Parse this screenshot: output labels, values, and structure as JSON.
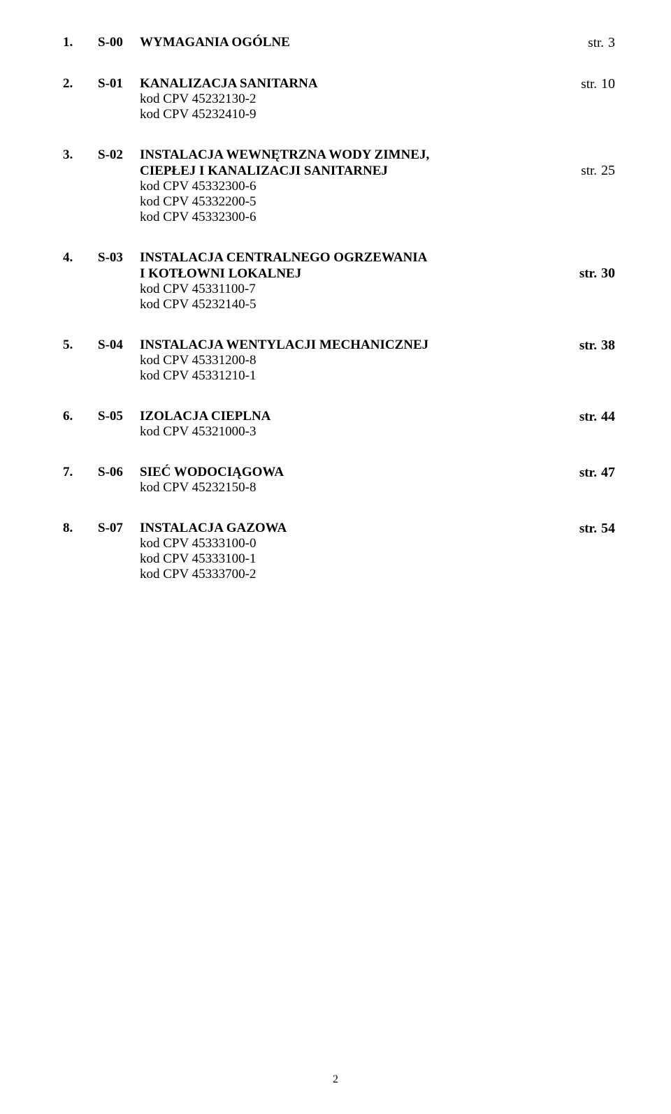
{
  "items": [
    {
      "number": "1.",
      "code": "S-00",
      "title": "WYMAGANIA OGÓLNE",
      "subtitle": "",
      "subLines": [],
      "strLabel": "str.",
      "pageNum": "3",
      "pageBold": false,
      "subtitleAligned": false
    },
    {
      "number": "2.",
      "code": "S-01",
      "title": "KANALIZACJA SANITARNA",
      "subtitle": "",
      "subLines": [
        "kod CPV  45232130-2",
        "kod CPV  45232410-9"
      ],
      "strLabel": "str.",
      "pageNum": "10",
      "pageBold": false,
      "subtitleAligned": false
    },
    {
      "number": "3.",
      "code": "S-02",
      "title": "INSTALACJA WEWNĘTRZNA WODY ZIMNEJ,",
      "subtitle": "CIEPŁEJ I KANALIZACJI SANITARNEJ",
      "subLines": [
        "kod CPV  45332300-6",
        "kod CPV  45332200-5",
        "kod CPV  45332300-6"
      ],
      "strLabel": "str.",
      "pageNum": "25",
      "pageBold": false,
      "subtitleAligned": true
    },
    {
      "number": "4.",
      "code": "S-03",
      "title": "INSTALACJA CENTRALNEGO OGRZEWANIA",
      "subtitle": "I KOTŁOWNI LOKALNEJ",
      "subLines": [
        "kod CPV  45331100-7",
        "kod CPV  45232140-5"
      ],
      "strLabel": "str.",
      "pageNum": "30",
      "pageBold": true,
      "subtitleAligned": true
    },
    {
      "number": "5.",
      "code": "S-04",
      "title": "INSTALACJA WENTYLACJI MECHANICZNEJ",
      "subtitle": "",
      "subLines": [
        "kod CPV  45331200-8",
        "kod CPV  45331210-1"
      ],
      "strLabel": "str.",
      "pageNum": "38",
      "pageBold": true,
      "subtitleAligned": false
    },
    {
      "number": "6.",
      "code": "S-05",
      "title": "IZOLACJA CIEPLNA",
      "subtitle": "",
      "subLines": [
        "kod CPV  45321000-3"
      ],
      "strLabel": "str.",
      "pageNum": "44",
      "pageBold": true,
      "subtitleAligned": false
    },
    {
      "number": "7.",
      "code": "S-06",
      "title": "SIEĆ WODOCIĄGOWA",
      "subtitle": "",
      "subLines": [
        "kod CPV  45232150-8"
      ],
      "strLabel": "str.",
      "pageNum": "47",
      "pageBold": true,
      "subtitleAligned": false
    },
    {
      "number": "8.",
      "code": "S-07",
      "title": "INSTALACJA GAZOWA",
      "subtitle": "",
      "subLines": [
        "kod CPV  45333100-0",
        "kod CPV  45333100-1",
        "kod CPV  45333700-2"
      ],
      "strLabel": "str.",
      "pageNum": "54",
      "pageBold": true,
      "subtitleAligned": false
    }
  ],
  "pageNumber": "2"
}
